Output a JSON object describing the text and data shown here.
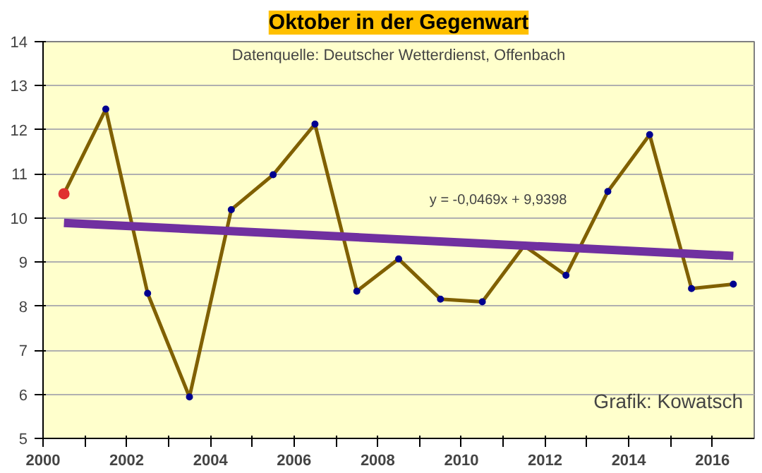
{
  "chart_data": {
    "type": "line",
    "title": "Oktober in der Gegenwart",
    "subtitle": "Datenquelle: Deutscher Wetterdienst, Offenbach",
    "x": [
      2000.5,
      2001.5,
      2002.5,
      2003.5,
      2004.5,
      2005.5,
      2006.5,
      2007.5,
      2008.5,
      2009.5,
      2010.5,
      2011.5,
      2012.5,
      2013.5,
      2014.5,
      2015.5,
      2016.5
    ],
    "series": [
      {
        "color": "#806000",
        "colors": [
          "#e03030",
          "#000090",
          "#000090",
          "#000090",
          "#000090",
          "#000090",
          "#000090",
          "#000090",
          "#000090",
          "#000090",
          "#000090",
          "#000090",
          "#000090",
          "#000090",
          "#000090",
          "#000090",
          "#000090"
        ],
        "values": [
          10.55,
          12.47,
          8.29,
          5.94,
          10.19,
          10.98,
          12.13,
          8.34,
          9.07,
          8.16,
          8.1,
          9.37,
          8.7,
          10.6,
          11.89,
          8.4,
          8.5
        ]
      },
      {
        "type": "line",
        "color": "#7030a0",
        "marker": "none",
        "x": [
          2000.5,
          2016.5
        ],
        "values": [
          9.89,
          9.14
        ]
      }
    ],
    "annotations": [
      "y = -0,0469x + 9,9398",
      "Grafik: Kowatsch"
    ],
    "xlim": [
      2000,
      2017
    ],
    "xticks": [
      2000,
      {
        "value": 2001,
        "label": null
      },
      2002,
      {
        "value": 2003,
        "label": null
      },
      2004,
      {
        "value": 2005,
        "label": null
      },
      2006,
      {
        "value": 2007,
        "label": null
      },
      2008,
      {
        "value": 2009,
        "label": null
      },
      2010,
      {
        "value": 2011,
        "label": null
      },
      2012,
      {
        "value": 2013,
        "label": null
      },
      2014,
      {
        "value": 2015,
        "label": null
      },
      2016
    ],
    "ylim": [
      5,
      14
    ],
    "yticks": [
      5,
      6,
      7,
      8,
      9,
      10,
      11,
      12,
      13,
      14
    ],
    "grid": "y",
    "marker": "circle",
    "line_style": "solid"
  }
}
